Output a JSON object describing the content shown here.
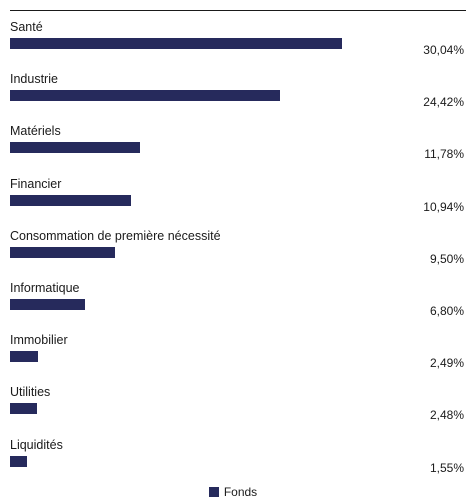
{
  "chart_data": {
    "type": "bar",
    "orientation": "horizontal",
    "categories": [
      "Santé",
      "Industrie",
      "Matériels",
      "Financier",
      "Consommation de première nécessité",
      "Informatique",
      "Immobilier",
      "Utilities",
      "Liquidités"
    ],
    "series": [
      {
        "name": "Fonds",
        "values": [
          30.04,
          24.42,
          11.78,
          10.94,
          9.5,
          6.8,
          2.49,
          2.48,
          1.55
        ],
        "value_labels": [
          "30,04%",
          "24,42%",
          "11,78%",
          "10,94%",
          "9,50%",
          "6,80%",
          "2,49%",
          "2,48%",
          "1,55%"
        ],
        "color": "#262a5c"
      }
    ],
    "xlim": [
      0,
      40
    ],
    "grid": false,
    "legend_position": "bottom-center"
  }
}
